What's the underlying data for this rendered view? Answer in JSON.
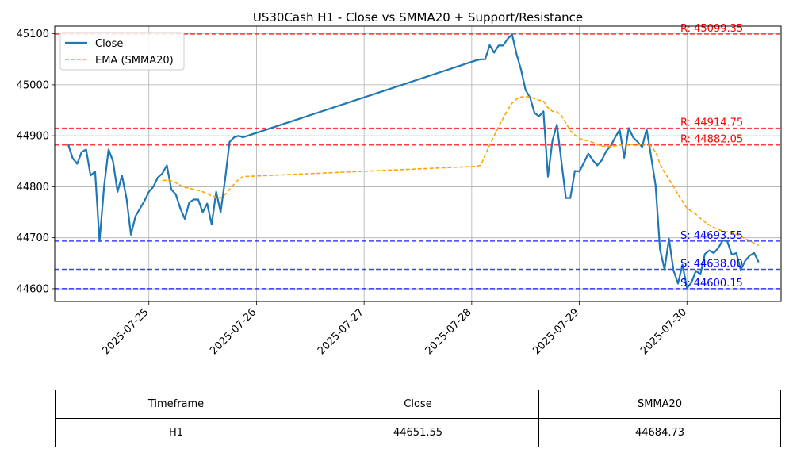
{
  "chart_data": {
    "type": "line",
    "title": "US30Cash H1 - Close vs SMMA20 + Support/Resistance",
    "xlabel": "",
    "ylabel": "",
    "x_ticks": [
      "2025-07-25",
      "2025-07-26",
      "2025-07-27",
      "2025-07-28",
      "2025-07-29",
      "2025-07-30"
    ],
    "y_ticks": [
      44600,
      44700,
      44800,
      44900,
      45000,
      45100
    ],
    "xlim": [
      "2025-07-24T03:00",
      "2025-07-30T21:00"
    ],
    "ylim": [
      44575,
      45115
    ],
    "grid": true,
    "legend": {
      "placement": "top-left",
      "entries": [
        "Close",
        "EMA (SMMA20)"
      ]
    },
    "series": [
      {
        "name": "Close",
        "color": "#1f77b4",
        "style": "solid",
        "points": [
          [
            "2025-07-24T06:00",
            44883
          ],
          [
            "2025-07-24T07:00",
            44856
          ],
          [
            "2025-07-24T08:00",
            44845
          ],
          [
            "2025-07-24T09:00",
            44868
          ],
          [
            "2025-07-24T10:00",
            44873
          ],
          [
            "2025-07-24T11:00",
            44822
          ],
          [
            "2025-07-24T12:00",
            44830
          ],
          [
            "2025-07-24T13:00",
            44693
          ],
          [
            "2025-07-24T14:00",
            44800
          ],
          [
            "2025-07-24T15:00",
            44873
          ],
          [
            "2025-07-24T16:00",
            44850
          ],
          [
            "2025-07-24T17:00",
            44790
          ],
          [
            "2025-07-24T18:00",
            44822
          ],
          [
            "2025-07-24T19:00",
            44778
          ],
          [
            "2025-07-24T20:00",
            44706
          ],
          [
            "2025-07-24T21:00",
            44742
          ],
          [
            "2025-07-24T22:00",
            44757
          ],
          [
            "2025-07-24T23:00",
            44772
          ],
          [
            "2025-07-25T00:00",
            44790
          ],
          [
            "2025-07-25T01:00",
            44800
          ],
          [
            "2025-07-25T02:00",
            44818
          ],
          [
            "2025-07-25T03:00",
            44826
          ],
          [
            "2025-07-25T04:00",
            44842
          ],
          [
            "2025-07-25T05:00",
            44795
          ],
          [
            "2025-07-25T06:00",
            44785
          ],
          [
            "2025-07-25T07:00",
            44758
          ],
          [
            "2025-07-25T08:00",
            44737
          ],
          [
            "2025-07-25T09:00",
            44769
          ],
          [
            "2025-07-25T10:00",
            44775
          ],
          [
            "2025-07-25T11:00",
            44775
          ],
          [
            "2025-07-25T12:00",
            44750
          ],
          [
            "2025-07-25T13:00",
            44767
          ],
          [
            "2025-07-25T14:00",
            44726
          ],
          [
            "2025-07-25T15:00",
            44790
          ],
          [
            "2025-07-25T16:00",
            44750
          ],
          [
            "2025-07-25T17:00",
            44815
          ],
          [
            "2025-07-25T18:00",
            44888
          ],
          [
            "2025-07-25T19:00",
            44897
          ],
          [
            "2025-07-25T20:00",
            44900
          ],
          [
            "2025-07-25T21:00",
            44897
          ],
          [
            "2025-07-28T01:00",
            45048
          ],
          [
            "2025-07-28T02:00",
            45050
          ],
          [
            "2025-07-28T03:00",
            45050
          ],
          [
            "2025-07-28T04:00",
            45078
          ],
          [
            "2025-07-28T05:00",
            45063
          ],
          [
            "2025-07-28T06:00",
            45077
          ],
          [
            "2025-07-28T07:00",
            45077
          ],
          [
            "2025-07-28T08:00",
            45090
          ],
          [
            "2025-07-28T09:00",
            45099
          ],
          [
            "2025-07-28T10:00",
            45060
          ],
          [
            "2025-07-28T11:00",
            45030
          ],
          [
            "2025-07-28T12:00",
            44990
          ],
          [
            "2025-07-28T13:00",
            44975
          ],
          [
            "2025-07-28T14:00",
            44945
          ],
          [
            "2025-07-28T15:00",
            44938
          ],
          [
            "2025-07-28T16:00",
            44948
          ],
          [
            "2025-07-28T17:00",
            44820
          ],
          [
            "2025-07-28T18:00",
            44890
          ],
          [
            "2025-07-28T19:00",
            44922
          ],
          [
            "2025-07-28T20:00",
            44850
          ],
          [
            "2025-07-28T21:00",
            44778
          ],
          [
            "2025-07-28T22:00",
            44778
          ],
          [
            "2025-07-28T23:00",
            44831
          ],
          [
            "2025-07-29T00:00",
            44830
          ],
          [
            "2025-07-29T01:00",
            44847
          ],
          [
            "2025-07-29T02:00",
            44865
          ],
          [
            "2025-07-29T03:00",
            44852
          ],
          [
            "2025-07-29T04:00",
            44842
          ],
          [
            "2025-07-29T05:00",
            44852
          ],
          [
            "2025-07-29T06:00",
            44870
          ],
          [
            "2025-07-29T07:00",
            44880
          ],
          [
            "2025-07-29T08:00",
            44897
          ],
          [
            "2025-07-29T09:00",
            44912
          ],
          [
            "2025-07-29T10:00",
            44857
          ],
          [
            "2025-07-29T11:00",
            44915
          ],
          [
            "2025-07-29T12:00",
            44897
          ],
          [
            "2025-07-29T13:00",
            44888
          ],
          [
            "2025-07-29T14:00",
            44878
          ],
          [
            "2025-07-29T15:00",
            44913
          ],
          [
            "2025-07-29T16:00",
            44860
          ],
          [
            "2025-07-29T17:00",
            44803
          ],
          [
            "2025-07-29T18:00",
            44677
          ],
          [
            "2025-07-29T19:00",
            44638
          ],
          [
            "2025-07-29T20:00",
            44698
          ],
          [
            "2025-07-29T21:00",
            44636
          ],
          [
            "2025-07-29T22:00",
            44610
          ],
          [
            "2025-07-29T23:00",
            44647
          ],
          [
            "2025-07-30T00:00",
            44601
          ],
          [
            "2025-07-30T01:00",
            44612
          ],
          [
            "2025-07-30T02:00",
            44635
          ],
          [
            "2025-07-30T03:00",
            44628
          ],
          [
            "2025-07-30T04:00",
            44668
          ],
          [
            "2025-07-30T05:00",
            44675
          ],
          [
            "2025-07-30T06:00",
            44670
          ],
          [
            "2025-07-30T07:00",
            44680
          ],
          [
            "2025-07-30T08:00",
            44695
          ],
          [
            "2025-07-30T09:00",
            44693
          ],
          [
            "2025-07-30T10:00",
            44667
          ],
          [
            "2025-07-30T11:00",
            44670
          ],
          [
            "2025-07-30T12:00",
            44637
          ],
          [
            "2025-07-30T13:00",
            44655
          ],
          [
            "2025-07-30T14:00",
            44665
          ],
          [
            "2025-07-30T15:00",
            44670
          ],
          [
            "2025-07-30T16:00",
            44652
          ]
        ]
      },
      {
        "name": "EMA (SMMA20)",
        "color": "#ffa500",
        "style": "dashed",
        "points": [
          [
            "2025-07-25T03:00",
            44812
          ],
          [
            "2025-07-25T04:00",
            44813
          ],
          [
            "2025-07-25T05:00",
            44812
          ],
          [
            "2025-07-25T06:00",
            44808
          ],
          [
            "2025-07-25T07:00",
            44803
          ],
          [
            "2025-07-25T08:00",
            44799
          ],
          [
            "2025-07-25T09:00",
            44797
          ],
          [
            "2025-07-25T10:00",
            44795
          ],
          [
            "2025-07-25T11:00",
            44793
          ],
          [
            "2025-07-25T12:00",
            44790
          ],
          [
            "2025-07-25T13:00",
            44787
          ],
          [
            "2025-07-25T14:00",
            44782
          ],
          [
            "2025-07-25T15:00",
            44780
          ],
          [
            "2025-07-25T16:00",
            44778
          ],
          [
            "2025-07-25T17:00",
            44785
          ],
          [
            "2025-07-25T18:00",
            44795
          ],
          [
            "2025-07-25T19:00",
            44805
          ],
          [
            "2025-07-25T20:00",
            44814
          ],
          [
            "2025-07-25T21:00",
            44820
          ],
          [
            "2025-07-28T01:00",
            44840
          ],
          [
            "2025-07-28T02:00",
            44842
          ],
          [
            "2025-07-28T03:00",
            44862
          ],
          [
            "2025-07-28T04:00",
            44882
          ],
          [
            "2025-07-28T05:00",
            44900
          ],
          [
            "2025-07-28T06:00",
            44918
          ],
          [
            "2025-07-28T07:00",
            44934
          ],
          [
            "2025-07-28T08:00",
            44950
          ],
          [
            "2025-07-28T09:00",
            44964
          ],
          [
            "2025-07-28T10:00",
            44972
          ],
          [
            "2025-07-28T11:00",
            44976
          ],
          [
            "2025-07-28T12:00",
            44977
          ],
          [
            "2025-07-28T13:00",
            44976
          ],
          [
            "2025-07-28T14:00",
            44973
          ],
          [
            "2025-07-28T15:00",
            44970
          ],
          [
            "2025-07-28T16:00",
            44968
          ],
          [
            "2025-07-28T17:00",
            44955
          ],
          [
            "2025-07-28T18:00",
            44948
          ],
          [
            "2025-07-28T19:00",
            44947
          ],
          [
            "2025-07-28T20:00",
            44940
          ],
          [
            "2025-07-28T21:00",
            44925
          ],
          [
            "2025-07-28T22:00",
            44910
          ],
          [
            "2025-07-28T23:00",
            44902
          ],
          [
            "2025-07-29T00:00",
            44895
          ],
          [
            "2025-07-29T01:00",
            44892
          ],
          [
            "2025-07-29T02:00",
            44890
          ],
          [
            "2025-07-29T03:00",
            44887
          ],
          [
            "2025-07-29T04:00",
            44883
          ],
          [
            "2025-07-29T05:00",
            44880
          ],
          [
            "2025-07-29T06:00",
            44879
          ],
          [
            "2025-07-29T07:00",
            44879
          ],
          [
            "2025-07-29T08:00",
            44880
          ],
          [
            "2025-07-29T09:00",
            44882
          ],
          [
            "2025-07-29T10:00",
            44880
          ],
          [
            "2025-07-29T11:00",
            44882
          ],
          [
            "2025-07-29T12:00",
            44883
          ],
          [
            "2025-07-29T13:00",
            44883
          ],
          [
            "2025-07-29T14:00",
            44883
          ],
          [
            "2025-07-29T15:00",
            44884
          ],
          [
            "2025-07-29T16:00",
            44880
          ],
          [
            "2025-07-29T17:00",
            44868
          ],
          [
            "2025-07-29T18:00",
            44845
          ],
          [
            "2025-07-29T19:00",
            44828
          ],
          [
            "2025-07-29T20:00",
            44815
          ],
          [
            "2025-07-29T21:00",
            44800
          ],
          [
            "2025-07-29T22:00",
            44785
          ],
          [
            "2025-07-29T23:00",
            44772
          ],
          [
            "2025-07-30T00:00",
            44758
          ],
          [
            "2025-07-30T01:00",
            44752
          ],
          [
            "2025-07-30T02:00",
            44746
          ],
          [
            "2025-07-30T03:00",
            44738
          ],
          [
            "2025-07-30T04:00",
            44731
          ],
          [
            "2025-07-30T05:00",
            44725
          ],
          [
            "2025-07-30T06:00",
            44720
          ],
          [
            "2025-07-30T07:00",
            44716
          ],
          [
            "2025-07-30T08:00",
            44713
          ],
          [
            "2025-07-30T09:00",
            44712
          ],
          [
            "2025-07-30T10:00",
            44710
          ],
          [
            "2025-07-30T11:00",
            44707
          ],
          [
            "2025-07-30T12:00",
            44703
          ],
          [
            "2025-07-30T13:00",
            44698
          ],
          [
            "2025-07-30T14:00",
            44694
          ],
          [
            "2025-07-30T15:00",
            44689
          ],
          [
            "2025-07-30T16:00",
            44685
          ]
        ]
      }
    ],
    "levels": [
      {
        "kind": "resistance",
        "value": 45099.35,
        "label": "R: 45099.35",
        "color": "#ff0000"
      },
      {
        "kind": "resistance",
        "value": 44914.75,
        "label": "R: 44914.75",
        "color": "#ff0000"
      },
      {
        "kind": "resistance",
        "value": 44882.05,
        "label": "R: 44882.05",
        "color": "#ff0000"
      },
      {
        "kind": "support",
        "value": 44693.55,
        "label": "S: 44693.55",
        "color": "#0000ff"
      },
      {
        "kind": "support",
        "value": 44638.0,
        "label": "S: 44638.00",
        "color": "#0000ff"
      },
      {
        "kind": "support",
        "value": 44600.15,
        "label": "S: 44600.15",
        "color": "#0000ff"
      }
    ]
  },
  "table": {
    "headers": {
      "timeframe": "Timeframe",
      "close": "Close",
      "smma": "SMMA20"
    },
    "row": {
      "timeframe": "H1",
      "close": "44651.55",
      "smma": "44684.73"
    }
  }
}
